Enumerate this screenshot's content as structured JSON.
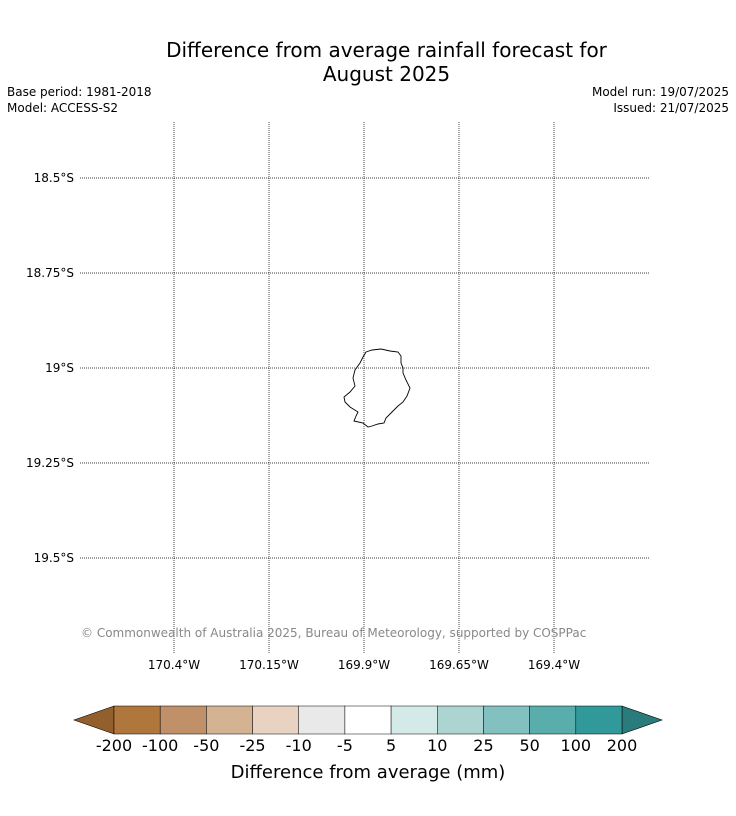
{
  "title": {
    "line1": "Difference from average rainfall forecast for",
    "line2": "August 2025"
  },
  "meta": {
    "base_period": "Base period: 1981-2018",
    "model": "Model: ACCESS-S2",
    "model_run": "Model run: 19/07/2025",
    "issued": "Issued: 21/07/2025"
  },
  "map": {
    "latitudes": [
      {
        "value": -18.5,
        "label": "18.5°S"
      },
      {
        "value": -18.75,
        "label": "18.75°S"
      },
      {
        "value": -19.0,
        "label": "19°S"
      },
      {
        "value": -19.25,
        "label": "19.25°S"
      },
      {
        "value": -19.5,
        "label": "19.5°S"
      }
    ],
    "longitudes": [
      {
        "value": -170.4,
        "label": "170.4°W"
      },
      {
        "value": -170.15,
        "label": "170.15°W"
      },
      {
        "value": -169.9,
        "label": "169.9°W"
      },
      {
        "value": -169.65,
        "label": "169.65°W"
      },
      {
        "value": -169.4,
        "label": "169.4°W"
      }
    ],
    "copyright": "© Commonwealth of Australia 2025, Bureau of Meteorology, supported by COSPPac"
  },
  "colorbar": {
    "label": "Difference from average (mm)",
    "ticks": [
      "-200",
      "-100",
      "-50",
      "-25",
      "-10",
      "-5",
      "5",
      "10",
      "25",
      "50",
      "100",
      "200"
    ],
    "colors": [
      "#b0773d",
      "#c09068",
      "#d4b393",
      "#e8d3c2",
      "#e9e9e9",
      "#ffffff",
      "#d4eae8",
      "#acd5d2",
      "#82c1c0",
      "#59adab",
      "#32999a"
    ],
    "under_color": "#935f2d",
    "over_color": "#2a7b7c"
  }
}
